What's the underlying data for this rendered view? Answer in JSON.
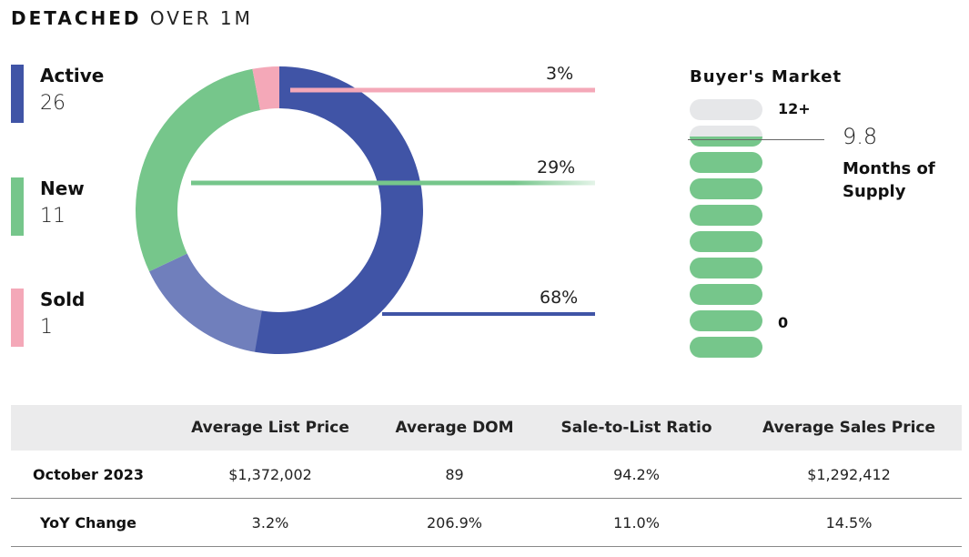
{
  "title": {
    "bold": "DETACHED",
    "light": "OVER 1M"
  },
  "colors": {
    "active": "#4054a6",
    "new": "#76c68b",
    "sold": "#f4a8b8",
    "pill_empty": "#e6e7e9"
  },
  "legend": [
    {
      "label": "Active",
      "value": "26"
    },
    {
      "label": "New",
      "value": "11"
    },
    {
      "label": "Sold",
      "value": "1"
    }
  ],
  "chart_data": {
    "type": "pie",
    "categories": [
      "Active",
      "New",
      "Sold"
    ],
    "values": [
      68,
      29,
      3
    ],
    "labels": [
      "68%",
      "29%",
      "3%"
    ]
  },
  "buyers_market": {
    "title": "Buyer's Market",
    "top_label": "12+",
    "bottom_label": "0",
    "value": "9.8",
    "caption_line1": "Months of",
    "caption_line2": "Supply",
    "months_of_supply": 9.8,
    "pill_count": 10,
    "filled_pills": 8
  },
  "table": {
    "headers": [
      "",
      "Average List Price",
      "Average DOM",
      "Sale-to-List Ratio",
      "Average Sales Price"
    ],
    "rows": [
      [
        "October 2023",
        "$1,372,002",
        "89",
        "94.2%",
        "$1,292,412"
      ],
      [
        "YoY Change",
        "3.2%",
        "206.9%",
        "11.0%",
        "14.5%"
      ]
    ]
  }
}
